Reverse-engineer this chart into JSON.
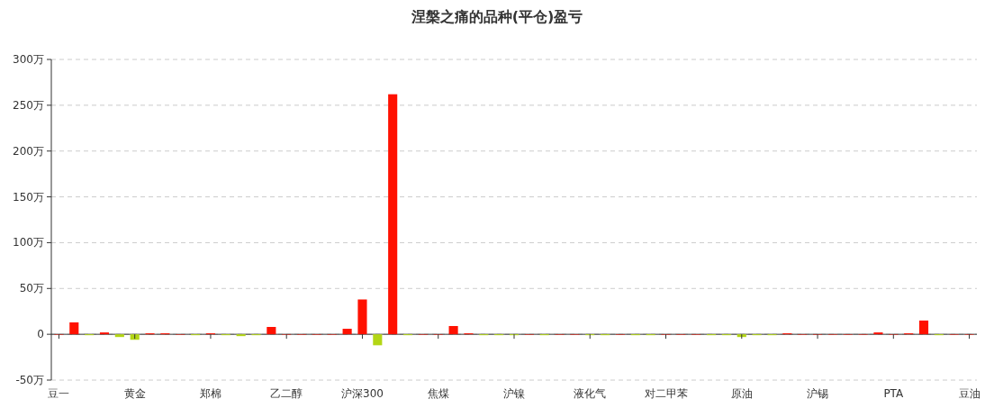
{
  "chart_data": {
    "type": "bar",
    "title": "涅槃之痛的品种(平仓)盈亏",
    "categories": [
      "豆一",
      null,
      null,
      null,
      null,
      "黄金",
      null,
      null,
      null,
      null,
      "郑棉",
      null,
      null,
      null,
      null,
      "乙二醇",
      null,
      null,
      null,
      null,
      "沪深300",
      null,
      null,
      null,
      null,
      "焦煤",
      null,
      null,
      null,
      null,
      "沪镍",
      null,
      null,
      null,
      null,
      "液化气",
      null,
      null,
      null,
      null,
      "对二甲苯",
      null,
      null,
      null,
      null,
      "原油",
      null,
      null,
      null,
      null,
      "沪锡",
      null,
      null,
      null,
      null,
      "PTA",
      null,
      null,
      null,
      null,
      "豆油"
    ],
    "values": [
      0,
      13,
      -1,
      2,
      -3,
      -6,
      1,
      1,
      0,
      -1,
      1,
      -1,
      -2,
      -1,
      8,
      0,
      0,
      0,
      0,
      6,
      38,
      -12,
      262,
      -1,
      0,
      0,
      9,
      1,
      -1,
      -1,
      -1,
      0,
      -1,
      0,
      0,
      -1,
      -1,
      0,
      -1,
      -1,
      0,
      0,
      0,
      -1,
      -1,
      -3,
      -1,
      -1,
      1,
      0,
      0,
      0,
      0,
      0,
      2,
      0,
      1,
      15,
      -1,
      0,
      0
    ],
    "colors": [
      "#ff1100",
      "#ff1100",
      "#b3d615",
      "#ff1100",
      "#b3d615",
      "#b3d615",
      "#ff1100",
      "#ff1100",
      "#ff1100",
      "#b3d615",
      "#ff1100",
      "#b3d615",
      "#b3d615",
      "#b3d615",
      "#ff1100",
      "#ff1100",
      "#ff1100",
      "#ff1100",
      "#ff1100",
      "#ff1100",
      "#ff1100",
      "#b3d615",
      "#ff1100",
      "#b3d615",
      "#ff1100",
      "#ff1100",
      "#ff1100",
      "#ff1100",
      "#b3d615",
      "#b3d615",
      "#b3d615",
      "#ff1100",
      "#b3d615",
      "#ff1100",
      "#ff1100",
      "#b3d615",
      "#b3d615",
      "#ff1100",
      "#b3d615",
      "#b3d615",
      "#ff1100",
      "#ff1100",
      "#ff1100",
      "#b3d615",
      "#b3d615",
      "#b3d615",
      "#b3d615",
      "#b3d615",
      "#ff1100",
      "#ff1100",
      "#ff1100",
      "#ff1100",
      "#ff1100",
      "#ff1100",
      "#ff1100",
      "#ff1100",
      "#ff1100",
      "#ff1100",
      "#b3d615",
      "#ff1100",
      "#ff1100"
    ],
    "ylim": [
      -50,
      300
    ],
    "yticks": [
      {
        "value": -50,
        "label": "-50万"
      },
      0,
      {
        "value": 50,
        "label": "50万"
      },
      {
        "value": 100,
        "label": "100万"
      },
      {
        "value": 150,
        "label": "150万"
      },
      {
        "value": 200,
        "label": "200万"
      },
      {
        "value": 250,
        "label": "250万"
      },
      {
        "value": 300,
        "label": "300万"
      }
    ],
    "grid": "y"
  }
}
